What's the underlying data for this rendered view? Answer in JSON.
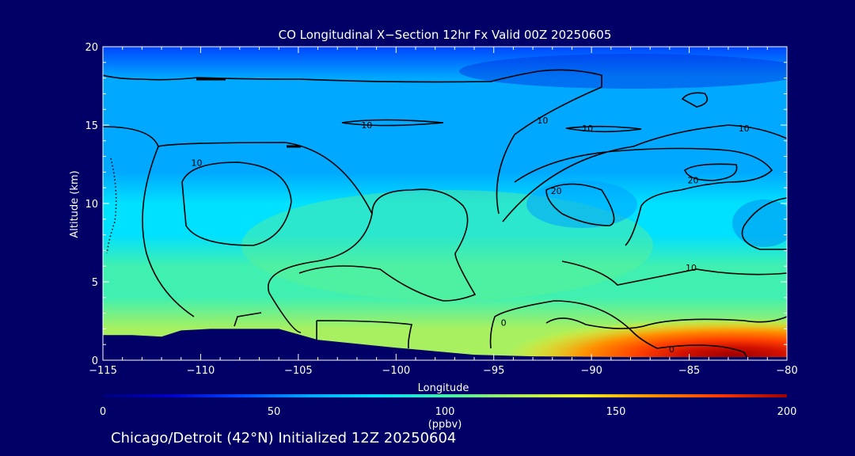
{
  "chart_data": {
    "type": "heatmap",
    "title": "CO Longitudinal X−Section 12hr  Fx Valid 00Z 20250605",
    "xlabel": "Longitude",
    "ylabel": "Altitude (km)",
    "xlim": [
      -115,
      -80
    ],
    "ylim": [
      0,
      20
    ],
    "x_ticks": [
      -115,
      -110,
      -105,
      -100,
      -95,
      -90,
      -85,
      -80
    ],
    "x_tick_labels": [
      "−115",
      "−110",
      "−105",
      "−100",
      "−95",
      "−90",
      "−85",
      "−80"
    ],
    "y_ticks": [
      0,
      5,
      10,
      15,
      20
    ],
    "y_tick_labels": [
      "0",
      "5",
      "10",
      "15",
      "20"
    ],
    "colorbar": {
      "label": "(ppbv)",
      "range": [
        0,
        200
      ],
      "ticks": [
        0,
        50,
        100,
        150,
        200
      ],
      "tick_labels": [
        "0",
        "50",
        "100",
        "150",
        "200"
      ],
      "orientation": "horizontal"
    },
    "field_profile": {
      "altitudes_km": [
        0.5,
        2,
        4,
        6,
        8,
        10,
        12,
        14,
        16,
        18,
        20
      ],
      "co_ppbv_approx": [
        115,
        112,
        105,
        95,
        85,
        75,
        68,
        62,
        55,
        50,
        45
      ]
    },
    "surface_hotspot": {
      "longitude_range": [
        -95,
        -80
      ],
      "altitude_range_km": [
        0,
        2.5
      ],
      "co_ppbv_approx": 175,
      "peak_longitude_range": [
        -84,
        -80
      ],
      "peak_ppbv_approx": 200
    },
    "contour_labels": [
      {
        "text": "10",
        "lon": -101.5,
        "alt": 15.0
      },
      {
        "text": "10",
        "lon": -110.2,
        "alt": 12.6
      },
      {
        "text": "10",
        "lon": -90.2,
        "alt": 14.8
      },
      {
        "text": "10",
        "lon": -92.5,
        "alt": 15.3
      },
      {
        "text": "10",
        "lon": -82.2,
        "alt": 14.8
      },
      {
        "text": "20",
        "lon": -91.8,
        "alt": 10.8
      },
      {
        "text": "20",
        "lon": -84.8,
        "alt": 11.5
      },
      {
        "text": "10",
        "lon": -84.9,
        "alt": 5.9
      },
      {
        "text": "0",
        "lon": -94.5,
        "alt": 2.4
      },
      {
        "text": "0",
        "lon": -85.9,
        "alt": 0.7
      }
    ],
    "terrain_km": [
      [
        -115,
        1.6
      ],
      [
        -113.5,
        1.6
      ],
      [
        -112,
        1.5
      ],
      [
        -111,
        1.9
      ],
      [
        -109.5,
        2.0
      ],
      [
        -108,
        2.0
      ],
      [
        -106,
        2.0
      ],
      [
        -104,
        1.3
      ],
      [
        -100,
        0.8
      ],
      [
        -96,
        0.35
      ],
      [
        -93,
        0.25
      ],
      [
        -88,
        0.2
      ],
      [
        -84,
        0.2
      ],
      [
        -80,
        0.2
      ]
    ]
  },
  "footer": {
    "text": "Chicago/Detroit (42°N) Initialized 12Z 20250604"
  },
  "colors": {
    "background": "#000066",
    "colormap": [
      "#00007a",
      "#0000c8",
      "#0046ff",
      "#00a8ff",
      "#00e0ff",
      "#40f0b0",
      "#a8f060",
      "#f0f028",
      "#ff9400",
      "#ff3800",
      "#9c0000"
    ]
  }
}
